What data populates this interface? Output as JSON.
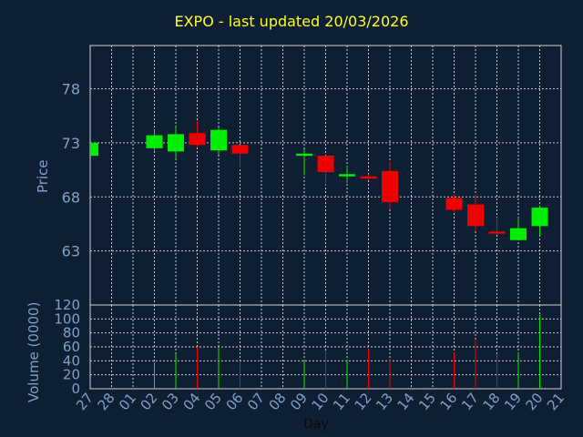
{
  "title": "EXPO - last updated 20/03/2026",
  "colors": {
    "background": "#0f1f33",
    "up": "#00ee00",
    "down": "#ee0000",
    "title": "#ffff22",
    "axis_text": "#7fa0c8",
    "grid": "#c8c8c8"
  },
  "chart_data": {
    "type": "candlestick",
    "title": "EXPO - last updated 20/03/2026",
    "price_panel": {
      "ylabel": "Price",
      "yticks": [
        63,
        68,
        73,
        78
      ],
      "ylim": [
        58,
        82
      ],
      "grid": true
    },
    "volume_panel": {
      "ylabel": "Volume (0000)",
      "yticks": [
        0,
        20,
        40,
        60,
        80,
        100,
        120
      ],
      "ylim": [
        0,
        120
      ],
      "grid": true
    },
    "xlabel": "Day",
    "x_ticks": [
      "27",
      "28",
      "01",
      "02",
      "03",
      "04",
      "05",
      "06",
      "07",
      "08",
      "09",
      "10",
      "11",
      "12",
      "13",
      "14",
      "15",
      "16",
      "17",
      "18",
      "19",
      "20",
      "21"
    ],
    "candles": [
      {
        "day": "27",
        "open": 71.8,
        "high": 73.0,
        "low": 71.8,
        "close": 73.0,
        "volume": 0
      },
      {
        "day": "02",
        "open": 72.5,
        "high": 74.2,
        "low": 72.3,
        "close": 73.7,
        "volume": 38
      },
      {
        "day": "03",
        "open": 72.2,
        "high": 74.5,
        "low": 71.5,
        "close": 73.8,
        "volume": 50
      },
      {
        "day": "04",
        "open": 73.9,
        "high": 75.0,
        "low": 72.6,
        "close": 72.8,
        "volume": 60
      },
      {
        "day": "05",
        "open": 72.3,
        "high": 74.4,
        "low": 71.9,
        "close": 74.2,
        "volume": 60
      },
      {
        "day": "06",
        "open": 72.8,
        "high": 72.8,
        "low": 70.7,
        "close": 72.0,
        "volume": 40
      },
      {
        "day": "09",
        "open": 71.8,
        "high": 72.4,
        "low": 70.0,
        "close": 72.0,
        "volume": 40
      },
      {
        "day": "10",
        "open": 71.8,
        "high": 71.8,
        "low": 69.1,
        "close": 70.3,
        "volume": 55
      },
      {
        "day": "11",
        "open": 69.9,
        "high": 70.9,
        "low": 69.3,
        "close": 70.1,
        "volume": 42
      },
      {
        "day": "12",
        "open": 69.9,
        "high": 70.1,
        "low": 69.6,
        "close": 69.7,
        "volume": 57
      },
      {
        "day": "13",
        "open": 70.4,
        "high": 71.3,
        "low": 66.9,
        "close": 67.5,
        "volume": 43
      },
      {
        "day": "16",
        "open": 67.9,
        "high": 68.2,
        "low": 66.6,
        "close": 66.8,
        "volume": 52
      },
      {
        "day": "17",
        "open": 67.3,
        "high": 68.2,
        "low": 64.8,
        "close": 65.3,
        "volume": 70
      },
      {
        "day": "18",
        "open": 64.8,
        "high": 66.1,
        "low": 64.5,
        "close": 64.6,
        "volume": 50
      },
      {
        "day": "19",
        "open": 64.0,
        "high": 66.1,
        "low": 64.0,
        "close": 65.1,
        "volume": 52
      },
      {
        "day": "20",
        "open": 65.3,
        "high": 67.2,
        "low": 64.4,
        "close": 67.0,
        "volume": 106
      }
    ]
  }
}
